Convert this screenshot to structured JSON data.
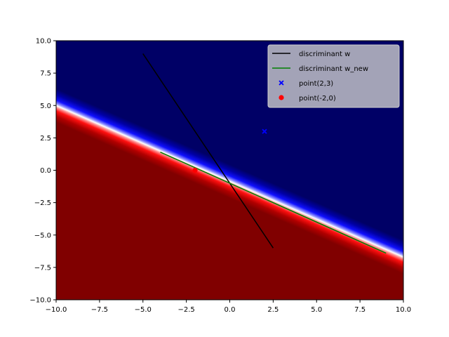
{
  "chart_data": {
    "type": "scatter",
    "title": "",
    "xlabel": "",
    "ylabel": "",
    "xlim": [
      -10,
      10
    ],
    "ylim": [
      -10,
      10
    ],
    "x_ticks": [
      -10.0,
      -7.5,
      -5.0,
      -2.5,
      0.0,
      2.5,
      5.0,
      7.5,
      10.0
    ],
    "y_ticks": [
      -10.0,
      -7.5,
      -5.0,
      -2.5,
      0.0,
      2.5,
      5.0,
      7.5,
      10.0
    ],
    "x_tick_labels": [
      "−10.0",
      "−7.5",
      "−5.0",
      "−2.5",
      "0.0",
      "2.5",
      "5.0",
      "7.5",
      "10.0"
    ],
    "y_tick_labels": [
      "−10.0",
      "−7.5",
      "−5.0",
      "−2.5",
      "0.0",
      "2.5",
      "5.0",
      "7.5",
      "10.0"
    ],
    "grid": false,
    "legend_position": "top-right",
    "background": {
      "kind": "decision-boundary-heatmap",
      "colormap": "seismic",
      "boundary_line": {
        "x": [
          -10,
          10
        ],
        "y": [
          5.0,
          -6.7
        ]
      },
      "above_color": "#000066",
      "below_color": "#800000"
    },
    "series": [
      {
        "name": "discriminant w",
        "type": "line",
        "color": "#000000",
        "x": [
          -5.0,
          2.5
        ],
        "y": [
          9.0,
          -6.0
        ]
      },
      {
        "name": "discriminant w_new",
        "type": "line",
        "color": "#008000",
        "x": [
          -4.0,
          9.0
        ],
        "y": [
          1.4,
          -6.4
        ]
      },
      {
        "name": "point(2,3)",
        "type": "scatter",
        "marker": "X",
        "color": "#0000ff",
        "x": [
          2
        ],
        "y": [
          3
        ]
      },
      {
        "name": "point(-2,0)",
        "type": "scatter",
        "marker": "o",
        "color": "#ff0000",
        "x": [
          -2
        ],
        "y": [
          0
        ]
      }
    ]
  }
}
